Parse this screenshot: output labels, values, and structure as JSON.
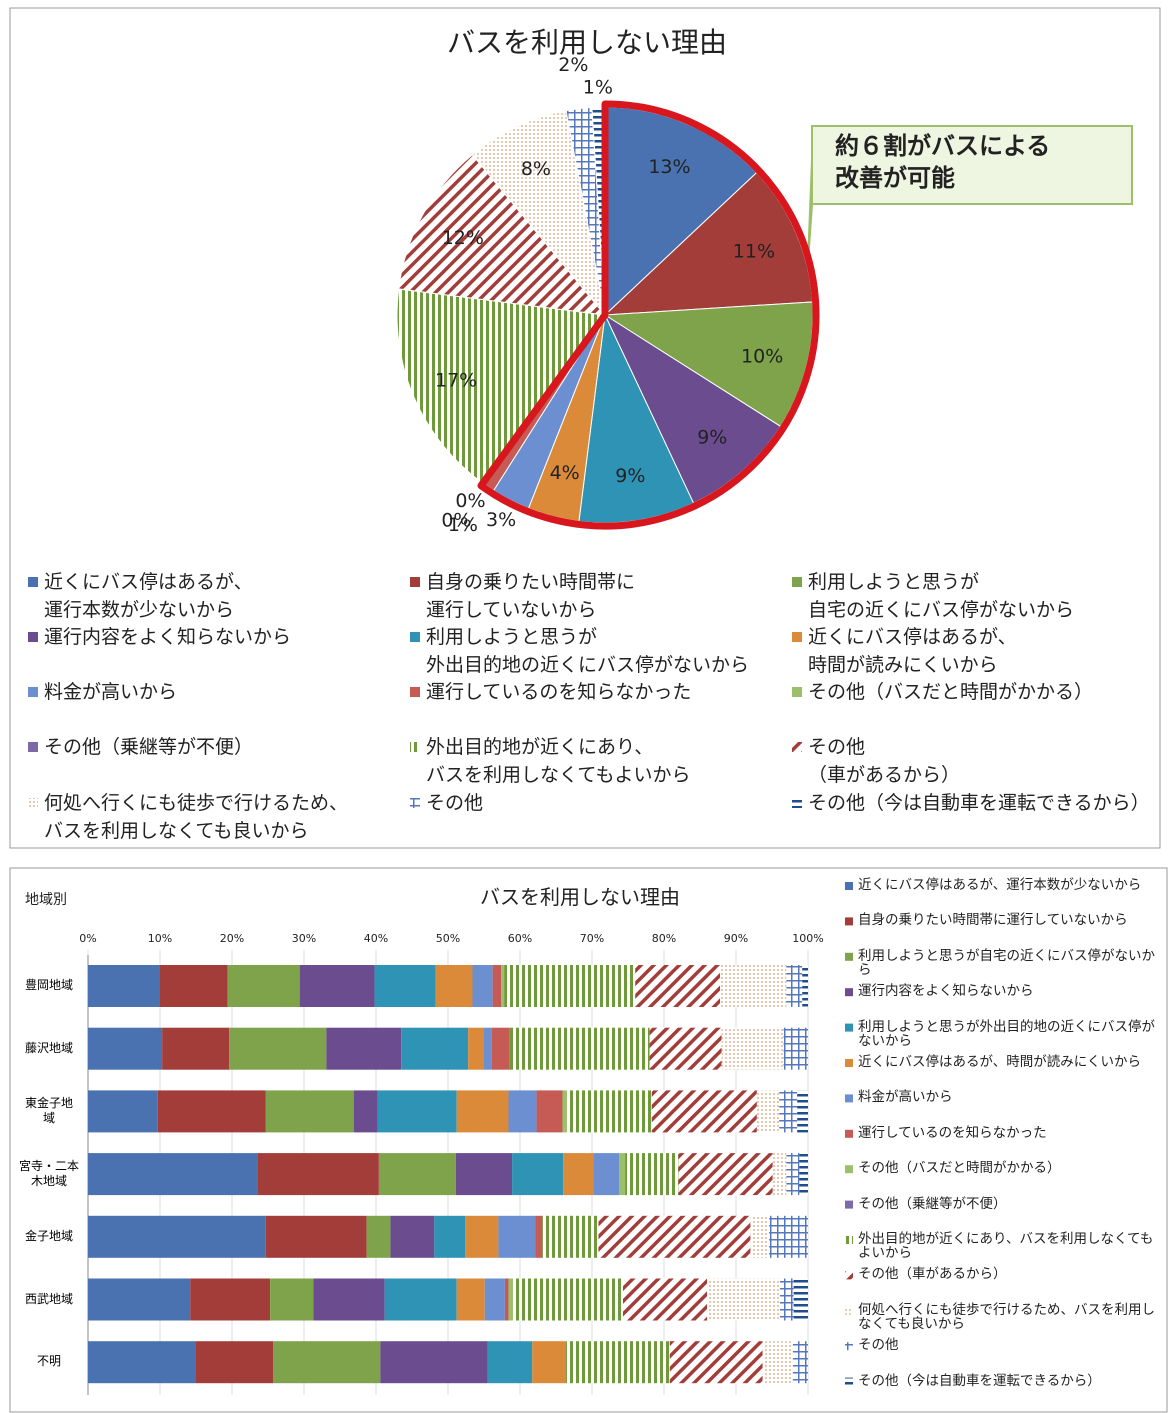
{
  "chart_data": [
    {
      "type": "pie",
      "title": "バスを利用しない理由",
      "annotation": "約６割がバスによる\n改善が可能",
      "categories": [
        "近くにバス停はあるが、\n運行本数が少ないから",
        "自身の乗りたい時間帯に\n運行していないから",
        "利用しようと思うが\n自宅の近くにバス停がないから",
        "運行内容をよく知らないから",
        "利用しようと思うが\n外出目的地の近くにバス停がないから",
        "近くにバス停はあるが、\n時間が読みにくいから",
        "料金が高いから",
        "運行しているのを知らなかった",
        "その他（バスだと時間がかかる）",
        "その他（乗継等が不便）",
        "外出目的地が近くにあり、\nバスを利用しなくてもよいから",
        "その他\n（車があるから）",
        "何処へ行くにも徒歩で行けるため、\nバスを利用しなくても良いから",
        "その他",
        "その他（今は自動車を運転できるから）"
      ],
      "values": [
        13,
        11,
        10,
        9,
        9,
        4,
        3,
        1,
        0,
        0,
        17,
        12,
        8,
        2,
        1
      ],
      "value_labels": [
        "13%",
        "11%",
        "10%",
        "9%",
        "9%",
        "4%",
        "3%",
        "1%",
        "0%",
        "0%",
        "17%",
        "12%",
        "8%",
        "2%",
        "1%"
      ],
      "colors": [
        "#4a72b0",
        "#a33d3a",
        "#7ea34a",
        "#6a4c8f",
        "#2f93b5",
        "#db8a3a",
        "#6b8fd0",
        "#c65a55",
        "#9cc06a",
        "#7b6aa6",
        "#6e9a3a",
        "#a33d3a",
        "#d9a27a",
        "#5577bb",
        "#1f4e8f"
      ],
      "patterns": [
        "solid",
        "solid",
        "solid",
        "solid",
        "solid",
        "solid",
        "solid",
        "solid",
        "solid",
        "solid",
        "vstripe",
        "diag",
        "dots",
        "grid",
        "hdash"
      ]
    },
    {
      "type": "bar",
      "orientation": "horizontal",
      "stacked": true,
      "title": "バスを利用しない理由",
      "subtitle": "地域別",
      "categories": [
        "豊岡地域",
        "藤沢地域",
        "東金子地\n域",
        "宮寺・二本\n木地域",
        "金子地域",
        "西武地域",
        "不明"
      ],
      "xlim": [
        0,
        100
      ],
      "xticks": [
        {
          "value": 0,
          "label": "0%"
        },
        {
          "value": 10,
          "label": "10%"
        },
        {
          "value": 20,
          "label": "20%"
        },
        {
          "value": 30,
          "label": "30%"
        },
        {
          "value": 40,
          "label": "40%"
        },
        {
          "value": 50,
          "label": "50%"
        },
        {
          "value": 60,
          "label": "60%"
        },
        {
          "value": 70,
          "label": "70%"
        },
        {
          "value": 80,
          "label": "80%"
        },
        {
          "value": 90,
          "label": "90%"
        },
        {
          "value": 100,
          "label": "100%"
        }
      ],
      "series": [
        {
          "name": "近くにバス停はあるが、運行本数が少ないから",
          "color": "#4a72b0",
          "pattern": "solid",
          "values": [
            10,
            10.3,
            9.7,
            23.5,
            24.7,
            14.2,
            15
          ]
        },
        {
          "name": "自身の乗りたい時間帯に運行していないから",
          "color": "#a33d3a",
          "pattern": "solid",
          "values": [
            9.4,
            9.3,
            15,
            16.9,
            14,
            11.1,
            10.7
          ]
        },
        {
          "name": "利用しようと思うが自宅の近くにバス停がないから",
          "color": "#7ea34a",
          "pattern": "solid",
          "values": [
            10,
            13.5,
            12.2,
            10.7,
            3.3,
            6,
            14.9
          ]
        },
        {
          "name": "運行内容をよく知らないから",
          "color": "#6a4c8f",
          "pattern": "solid",
          "values": [
            10.4,
            10.4,
            3.3,
            7.8,
            6.1,
            9.9,
            14.9
          ]
        },
        {
          "name": "利用しようと思うが外出目的地の近くにバス停がないから",
          "color": "#2f93b5",
          "pattern": "solid",
          "values": [
            8.5,
            9.3,
            11,
            7.1,
            4.3,
            10,
            6.2
          ]
        },
        {
          "name": "近くにバス停はあるが、時間が読みにくいから",
          "color": "#db8a3a",
          "pattern": "solid",
          "values": [
            5.1,
            2.2,
            7.2,
            4.2,
            4.6,
            3.9,
            4.7
          ]
        },
        {
          "name": "料金が高いから",
          "color": "#6b8fd0",
          "pattern": "solid",
          "values": [
            2.8,
            1.1,
            3.9,
            3.6,
            5.1,
            2.8,
            0
          ]
        },
        {
          "name": "運行しているのを知らなかった",
          "color": "#c65a55",
          "pattern": "solid",
          "values": [
            1.2,
            2.5,
            3.6,
            0,
            1,
            0.5,
            0
          ]
        },
        {
          "name": "その他（バスだと時間がかかる）",
          "color": "#9cc06a",
          "pattern": "solid",
          "values": [
            0.4,
            0,
            0.6,
            0.8,
            0,
            0.6,
            0
          ]
        },
        {
          "name": "その他（乗継等が不便）",
          "color": "#7b6aa6",
          "pattern": "solid",
          "values": [
            0,
            0,
            0,
            0,
            0,
            0,
            0
          ]
        },
        {
          "name": "外出目的地が近くにあり、バスを利用しなくてもよいから",
          "color": "#6e9a3a",
          "pattern": "vstripe",
          "values": [
            18.2,
            19.4,
            11.8,
            7.4,
            7.8,
            15.3,
            14.4
          ]
        },
        {
          "name": "その他（車があるから）",
          "color": "#a33d3a",
          "pattern": "diag",
          "values": [
            11.8,
            10,
            14.6,
            13.1,
            21.1,
            11.7,
            12.9
          ]
        },
        {
          "name": "何処へ行くにも徒歩で行けるため、バスを利用しなくても良いから",
          "color": "#d9a27a",
          "pattern": "dots",
          "values": [
            9.2,
            8.6,
            3.1,
            1.9,
            2.6,
            10.1,
            4.2
          ]
        },
        {
          "name": "その他",
          "color": "#5577bb",
          "pattern": "grid",
          "values": [
            2.2,
            3.4,
            2.5,
            1.8,
            5.4,
            1.9,
            2.1
          ]
        },
        {
          "name": "その他（今は自動車を運転できるから）",
          "color": "#1f4e8f",
          "pattern": "hdash",
          "values": [
            0.8,
            0,
            1.5,
            1.2,
            0,
            2,
            0
          ]
        }
      ]
    }
  ]
}
